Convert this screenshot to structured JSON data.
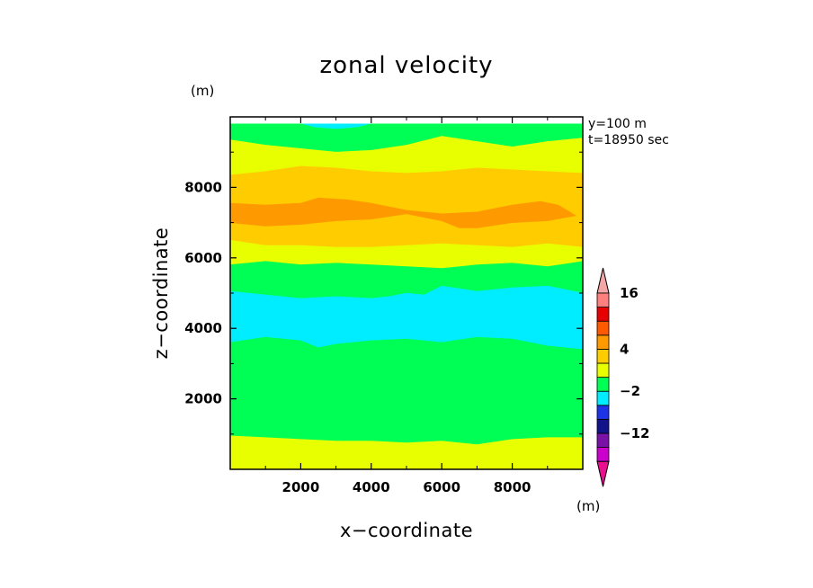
{
  "chart_data": {
    "type": "heatmap",
    "title": "zonal velocity",
    "xlabel": "x−coordinate",
    "ylabel": "z−coordinate",
    "y_unit": "(m)",
    "info": [
      "y=100  m",
      "t=18950 sec"
    ],
    "xlim": [
      0,
      10000
    ],
    "ylim": [
      0,
      10000
    ],
    "xticks": [
      2000,
      4000,
      6000,
      8000
    ],
    "yticks": [
      2000,
      4000,
      6000,
      8000
    ],
    "xtick_labels": [
      "2000",
      "4000",
      "6000",
      "8000"
    ],
    "ytick_labels": [
      "2000",
      "4000",
      "6000",
      "8000"
    ],
    "colorbar": {
      "unit": "(m)",
      "labels": [
        {
          "value": 16,
          "text": "16"
        },
        {
          "value": 4,
          "text": "4"
        },
        {
          "value": -2,
          "text": "−2"
        },
        {
          "value": -12,
          "text": "−12"
        }
      ],
      "colors": [
        "#cc00cc",
        "#7a12a8",
        "#12128a",
        "#1e32e6",
        "#00ecff",
        "#00ff55",
        "#e8ff00",
        "#ffcc00",
        "#ff9900",
        "#ff5a00",
        "#e60000",
        "#ff7f7f"
      ],
      "end_colors": [
        "#e8108e",
        "#f4a6a6"
      ]
    },
    "contour_bands": [
      {
        "level": "-2",
        "color": "#00ecff",
        "top": [
          [
            0,
            9800
          ],
          [
            10000,
            9800
          ]
        ],
        "bottom": [
          [
            0,
            9800
          ],
          [
            2000,
            9800
          ],
          [
            2400,
            9700
          ],
          [
            3000,
            9650
          ],
          [
            3600,
            9700
          ],
          [
            4000,
            9800
          ],
          [
            10000,
            9800
          ]
        ]
      },
      {
        "level": "0",
        "color": "#00ff55",
        "top": [
          [
            0,
            9800
          ],
          [
            2000,
            9800
          ],
          [
            2400,
            9700
          ],
          [
            3000,
            9650
          ],
          [
            3600,
            9700
          ],
          [
            4000,
            9800
          ],
          [
            10000,
            9800
          ]
        ],
        "bottom": [
          [
            0,
            9350
          ],
          [
            1000,
            9200
          ],
          [
            2000,
            9100
          ],
          [
            3000,
            9000
          ],
          [
            4000,
            9050
          ],
          [
            5000,
            9200
          ],
          [
            6000,
            9450
          ],
          [
            7000,
            9300
          ],
          [
            8000,
            9150
          ],
          [
            9000,
            9300
          ],
          [
            10000,
            9400
          ]
        ]
      },
      {
        "level": "2",
        "color": "#e8ff00",
        "top": [
          [
            0,
            9350
          ],
          [
            1000,
            9200
          ],
          [
            2000,
            9100
          ],
          [
            3000,
            9000
          ],
          [
            4000,
            9050
          ],
          [
            5000,
            9200
          ],
          [
            6000,
            9450
          ],
          [
            7000,
            9300
          ],
          [
            8000,
            9150
          ],
          [
            9000,
            9300
          ],
          [
            10000,
            9400
          ]
        ],
        "bottom": [
          [
            0,
            8350
          ],
          [
            1000,
            8450
          ],
          [
            2000,
            8600
          ],
          [
            3000,
            8550
          ],
          [
            4000,
            8450
          ],
          [
            5000,
            8400
          ],
          [
            6000,
            8450
          ],
          [
            7000,
            8550
          ],
          [
            8000,
            8500
          ],
          [
            9000,
            8450
          ],
          [
            10000,
            8400
          ]
        ]
      },
      {
        "level": "4",
        "color": "#ffcc00",
        "top": [
          [
            0,
            8350
          ],
          [
            1000,
            8450
          ],
          [
            2000,
            8600
          ],
          [
            3000,
            8550
          ],
          [
            4000,
            8450
          ],
          [
            5000,
            8400
          ],
          [
            6000,
            8450
          ],
          [
            7000,
            8550
          ],
          [
            8000,
            8500
          ],
          [
            9000,
            8450
          ],
          [
            10000,
            8400
          ]
        ],
        "bottom": [
          [
            0,
            6500
          ],
          [
            1000,
            6350
          ],
          [
            2000,
            6350
          ],
          [
            3000,
            6300
          ],
          [
            4000,
            6300
          ],
          [
            5000,
            6350
          ],
          [
            6000,
            6400
          ],
          [
            7000,
            6350
          ],
          [
            8000,
            6300
          ],
          [
            9000,
            6400
          ],
          [
            10000,
            6300
          ]
        ]
      },
      {
        "level": "6",
        "color": "#ff9900",
        "top": [
          [
            0,
            7550
          ],
          [
            1000,
            7500
          ],
          [
            2000,
            7550
          ],
          [
            2500,
            7700
          ],
          [
            3300,
            7650
          ],
          [
            4000,
            7550
          ],
          [
            5000,
            7350
          ],
          [
            6000,
            7250
          ],
          [
            7000,
            7300
          ],
          [
            8000,
            7500
          ],
          [
            8800,
            7600
          ],
          [
            9300,
            7500
          ],
          [
            9800,
            7200
          ]
        ],
        "bottom": [
          [
            9800,
            7200
          ],
          [
            9000,
            7050
          ],
          [
            8000,
            7000
          ],
          [
            7000,
            6850
          ],
          [
            6500,
            6850
          ],
          [
            6000,
            7050
          ],
          [
            5000,
            7250
          ],
          [
            4000,
            7100
          ],
          [
            3000,
            7050
          ],
          [
            2000,
            6950
          ],
          [
            1000,
            6900
          ],
          [
            0,
            7000
          ]
        ]
      },
      {
        "level": "2b",
        "color": "#e8ff00",
        "top": [
          [
            0,
            6500
          ],
          [
            1000,
            6350
          ],
          [
            2000,
            6350
          ],
          [
            3000,
            6300
          ],
          [
            4000,
            6300
          ],
          [
            5000,
            6350
          ],
          [
            6000,
            6400
          ],
          [
            7000,
            6350
          ],
          [
            8000,
            6300
          ],
          [
            9000,
            6400
          ],
          [
            10000,
            6300
          ]
        ],
        "bottom": [
          [
            0,
            5800
          ],
          [
            1000,
            5900
          ],
          [
            2000,
            5800
          ],
          [
            3000,
            5850
          ],
          [
            4000,
            5800
          ],
          [
            5000,
            5750
          ],
          [
            6000,
            5700
          ],
          [
            7000,
            5800
          ],
          [
            8000,
            5850
          ],
          [
            9000,
            5750
          ],
          [
            10000,
            5900
          ]
        ]
      },
      {
        "level": "0b",
        "color": "#00ff55",
        "top": [
          [
            0,
            5800
          ],
          [
            1000,
            5900
          ],
          [
            2000,
            5800
          ],
          [
            3000,
            5850
          ],
          [
            4000,
            5800
          ],
          [
            5000,
            5750
          ],
          [
            6000,
            5700
          ],
          [
            7000,
            5800
          ],
          [
            8000,
            5850
          ],
          [
            9000,
            5750
          ],
          [
            10000,
            5900
          ]
        ],
        "bottom": [
          [
            0,
            5050
          ],
          [
            1000,
            4950
          ],
          [
            2000,
            4850
          ],
          [
            3000,
            4900
          ],
          [
            4000,
            4850
          ],
          [
            4500,
            4900
          ],
          [
            5000,
            5000
          ],
          [
            5500,
            4950
          ],
          [
            6000,
            5200
          ],
          [
            7000,
            5050
          ],
          [
            8000,
            5150
          ],
          [
            9000,
            5200
          ],
          [
            10000,
            5000
          ]
        ]
      },
      {
        "level": "-2b",
        "color": "#00ecff",
        "top": [
          [
            0,
            5050
          ],
          [
            1000,
            4950
          ],
          [
            2000,
            4850
          ],
          [
            3000,
            4900
          ],
          [
            4000,
            4850
          ],
          [
            4500,
            4900
          ],
          [
            5000,
            5000
          ],
          [
            5500,
            4950
          ],
          [
            6000,
            5200
          ],
          [
            7000,
            5050
          ],
          [
            8000,
            5150
          ],
          [
            9000,
            5200
          ],
          [
            10000,
            5000
          ]
        ],
        "bottom": [
          [
            0,
            3600
          ],
          [
            1000,
            3750
          ],
          [
            2000,
            3650
          ],
          [
            2500,
            3450
          ],
          [
            3000,
            3550
          ],
          [
            4000,
            3650
          ],
          [
            5000,
            3700
          ],
          [
            6000,
            3600
          ],
          [
            7000,
            3750
          ],
          [
            8000,
            3700
          ],
          [
            9000,
            3500
          ],
          [
            10000,
            3400
          ]
        ]
      },
      {
        "level": "0c",
        "color": "#00ff55",
        "top": [
          [
            0,
            3600
          ],
          [
            1000,
            3750
          ],
          [
            2000,
            3650
          ],
          [
            2500,
            3450
          ],
          [
            3000,
            3550
          ],
          [
            4000,
            3650
          ],
          [
            5000,
            3700
          ],
          [
            6000,
            3600
          ],
          [
            7000,
            3750
          ],
          [
            8000,
            3700
          ],
          [
            9000,
            3500
          ],
          [
            10000,
            3400
          ]
        ],
        "bottom": [
          [
            0,
            950
          ],
          [
            1000,
            900
          ],
          [
            2000,
            850
          ],
          [
            3000,
            800
          ],
          [
            4000,
            800
          ],
          [
            5000,
            750
          ],
          [
            6000,
            800
          ],
          [
            7000,
            700
          ],
          [
            8000,
            850
          ],
          [
            9000,
            900
          ],
          [
            10000,
            900
          ]
        ]
      },
      {
        "level": "2c",
        "color": "#e8ff00",
        "top": [
          [
            0,
            950
          ],
          [
            1000,
            900
          ],
          [
            2000,
            850
          ],
          [
            3000,
            800
          ],
          [
            4000,
            800
          ],
          [
            5000,
            750
          ],
          [
            6000,
            800
          ],
          [
            7000,
            700
          ],
          [
            8000,
            850
          ],
          [
            9000,
            900
          ],
          [
            10000,
            900
          ]
        ],
        "bottom": [
          [
            0,
            0
          ],
          [
            10000,
            0
          ]
        ]
      }
    ]
  }
}
